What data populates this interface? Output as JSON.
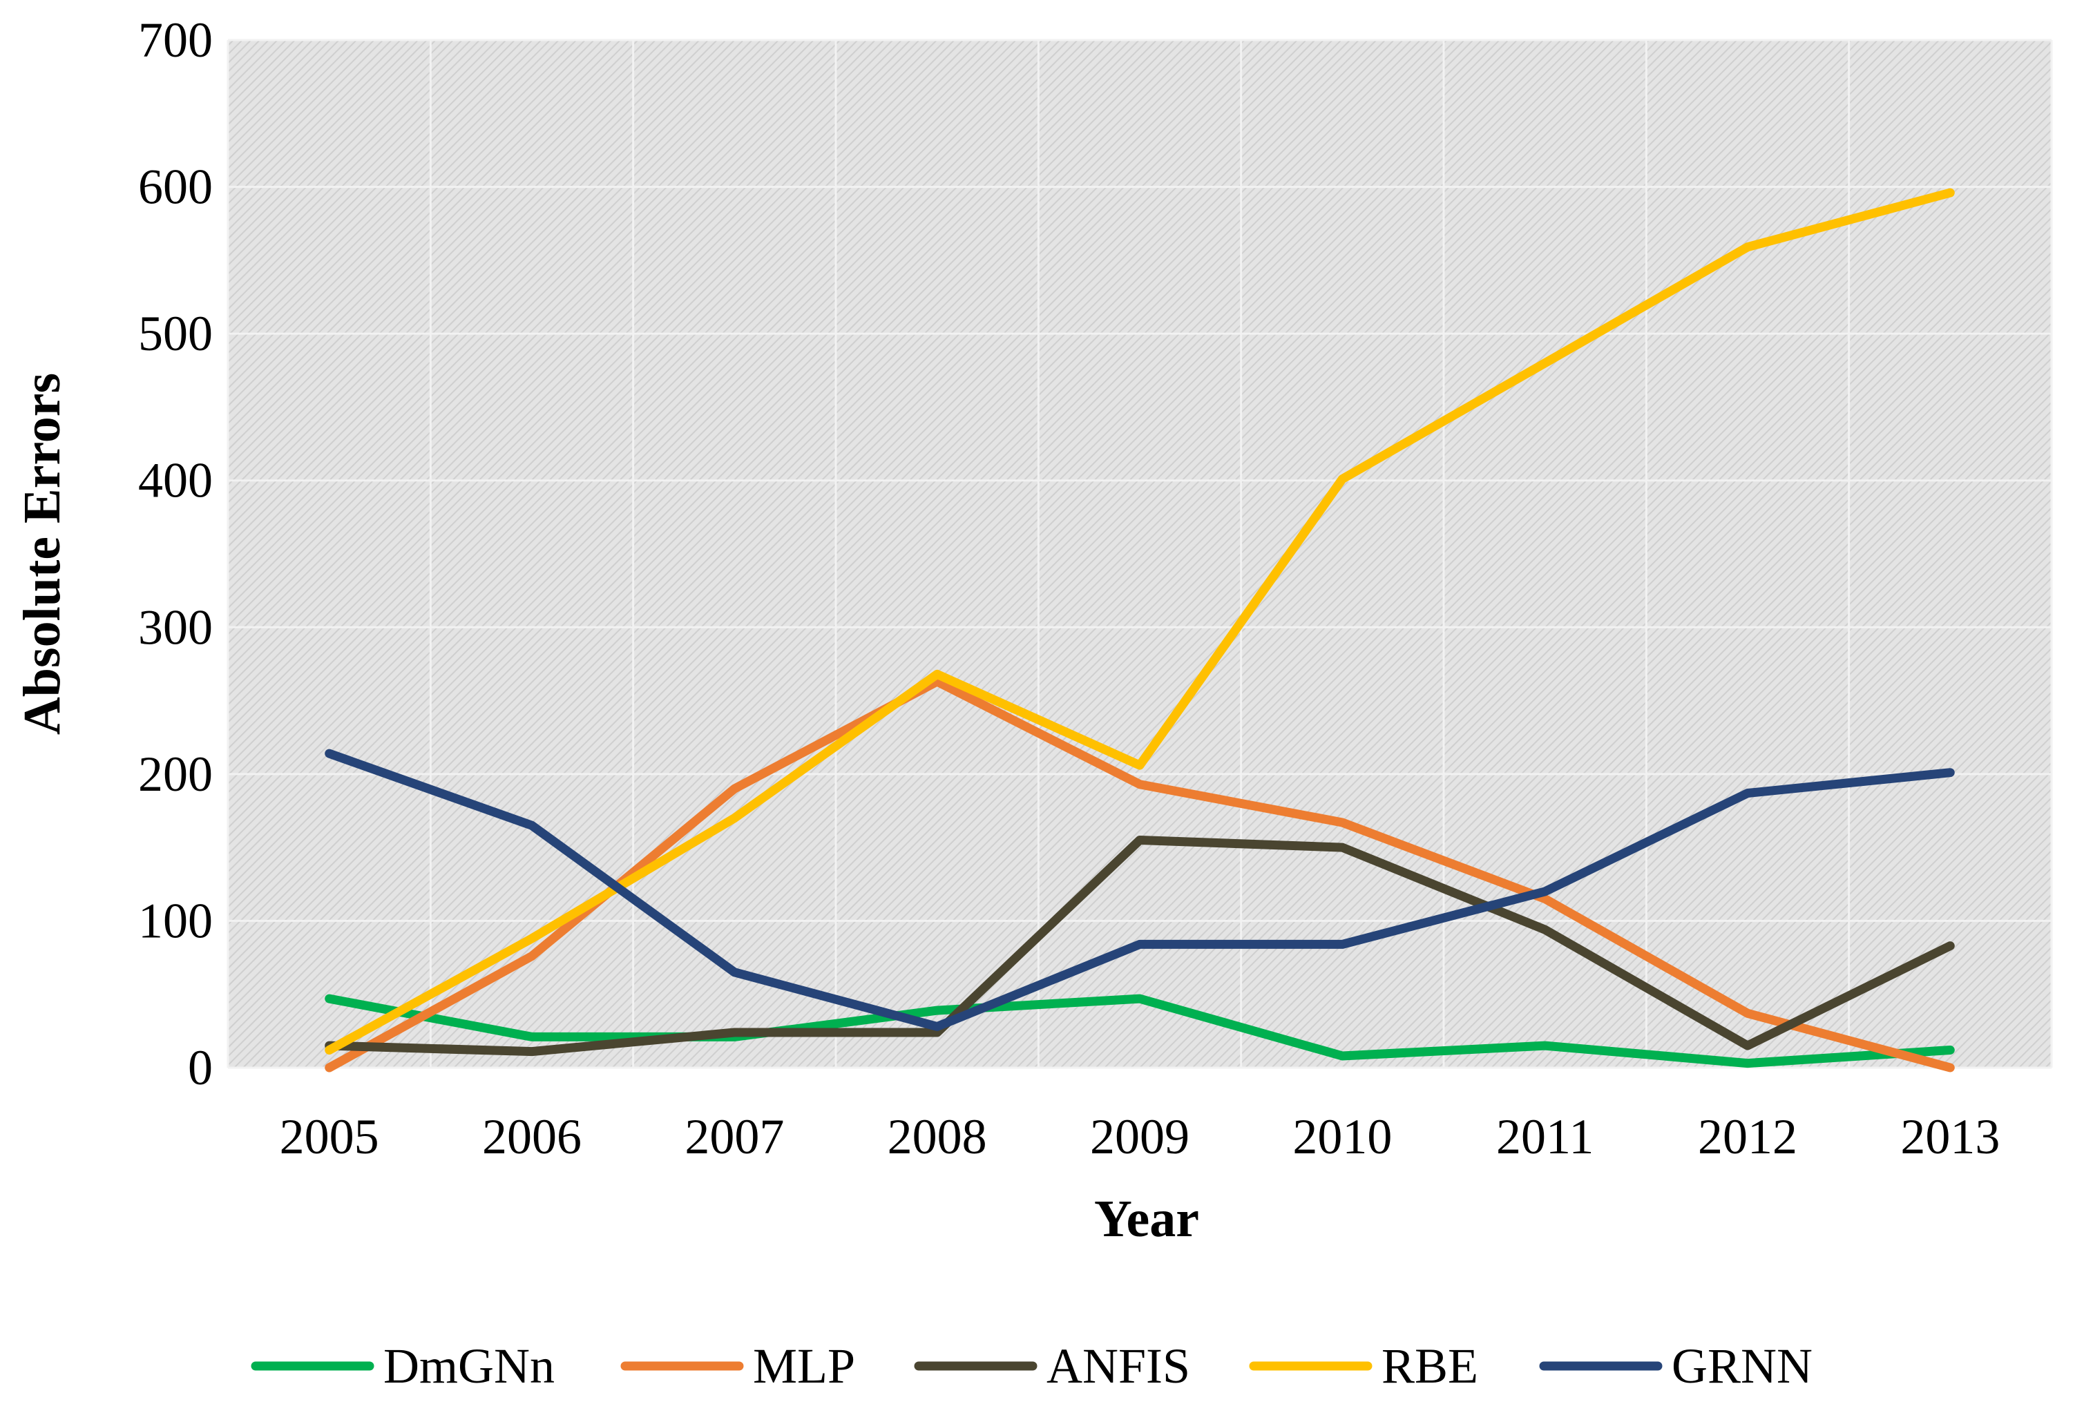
{
  "chart_data": {
    "type": "line",
    "title": "",
    "xlabel": "Year",
    "ylabel": "Absolute Errors",
    "categories": [
      "2005",
      "2006",
      "2007",
      "2008",
      "2009",
      "2010",
      "2011",
      "2012",
      "2013"
    ],
    "ylim": [
      0,
      700
    ],
    "yticks": [
      0,
      100,
      200,
      300,
      400,
      500,
      600,
      700
    ],
    "grid": true,
    "legend_position": "bottom",
    "series": [
      {
        "name": "DmGNn",
        "color": "#00B050",
        "values": [
          47,
          21,
          21,
          39,
          47,
          8,
          15,
          3,
          12
        ]
      },
      {
        "name": "MLP",
        "color": "#ED7D31",
        "values": [
          0,
          76,
          190,
          263,
          193,
          167,
          115,
          37,
          0
        ]
      },
      {
        "name": "ANFIS",
        "color": "#4A4530",
        "values": [
          15,
          11,
          24,
          24,
          155,
          150,
          94,
          15,
          83
        ]
      },
      {
        "name": "RBE",
        "color": "#FFC000",
        "values": [
          12,
          88,
          170,
          268,
          206,
          401,
          480,
          559,
          596
        ]
      },
      {
        "name": "GRNN",
        "color": "#264478",
        "values": [
          214,
          165,
          65,
          28,
          84,
          84,
          120,
          187,
          201
        ]
      }
    ]
  }
}
